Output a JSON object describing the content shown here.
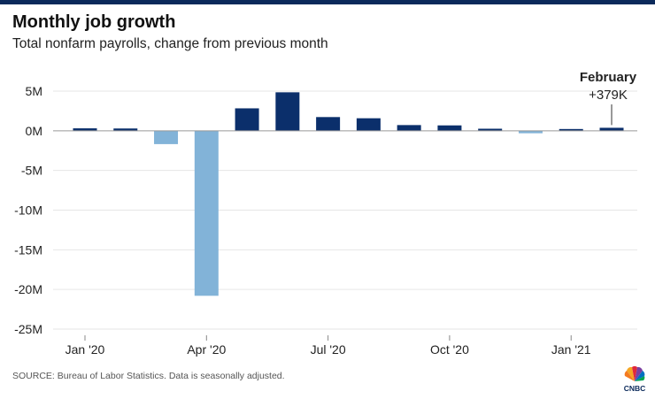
{
  "header": {
    "title": "Monthly job growth",
    "subtitle": "Total nonfarm payrolls, change from previous month"
  },
  "footer": {
    "source": "SOURCE: Bureau of Labor Statistics. Data is seasonally adjusted.",
    "logo_text": "CNBC"
  },
  "colors": {
    "positive": "#0b2f6b",
    "negative": "#82b3d8",
    "grid": "#e6e6e6",
    "zero_line": "#999999",
    "top_bar": "#0b2a5b"
  },
  "chart_data": {
    "type": "bar",
    "title": "Monthly job growth",
    "subtitle": "Total nonfarm payrolls, change from previous month",
    "categories": [
      "Jan 2020",
      "Feb 2020",
      "Mar 2020",
      "Apr 2020",
      "May 2020",
      "Jun 2020",
      "Jul 2020",
      "Aug 2020",
      "Sep 2020",
      "Oct 2020",
      "Nov 2020",
      "Dec 2020",
      "Jan 2021",
      "Feb 2021"
    ],
    "values": [
      0.31,
      0.29,
      -1.68,
      -20.8,
      2.83,
      4.85,
      1.73,
      1.58,
      0.72,
      0.68,
      0.26,
      -0.31,
      0.17,
      0.379
    ],
    "value_unit": "millions",
    "ylim": [
      -25,
      5
    ],
    "y_ticks": [
      5,
      0,
      -5,
      -10,
      -15,
      -20,
      -25
    ],
    "y_tick_labels": [
      "5M",
      "0M",
      "-5M",
      "-10M",
      "-15M",
      "-20M",
      "-25M"
    ],
    "x_tick_labels": [
      {
        "index": 0,
        "label": "Jan '20"
      },
      {
        "index": 3,
        "label": "Apr '20"
      },
      {
        "index": 6,
        "label": "Jul '20"
      },
      {
        "index": 9,
        "label": "Oct '20"
      },
      {
        "index": 12,
        "label": "Jan '21"
      }
    ],
    "xlabel": "",
    "ylabel": "",
    "grid": true,
    "annotation": {
      "index": 13,
      "title": "February",
      "text": "+379K"
    }
  }
}
